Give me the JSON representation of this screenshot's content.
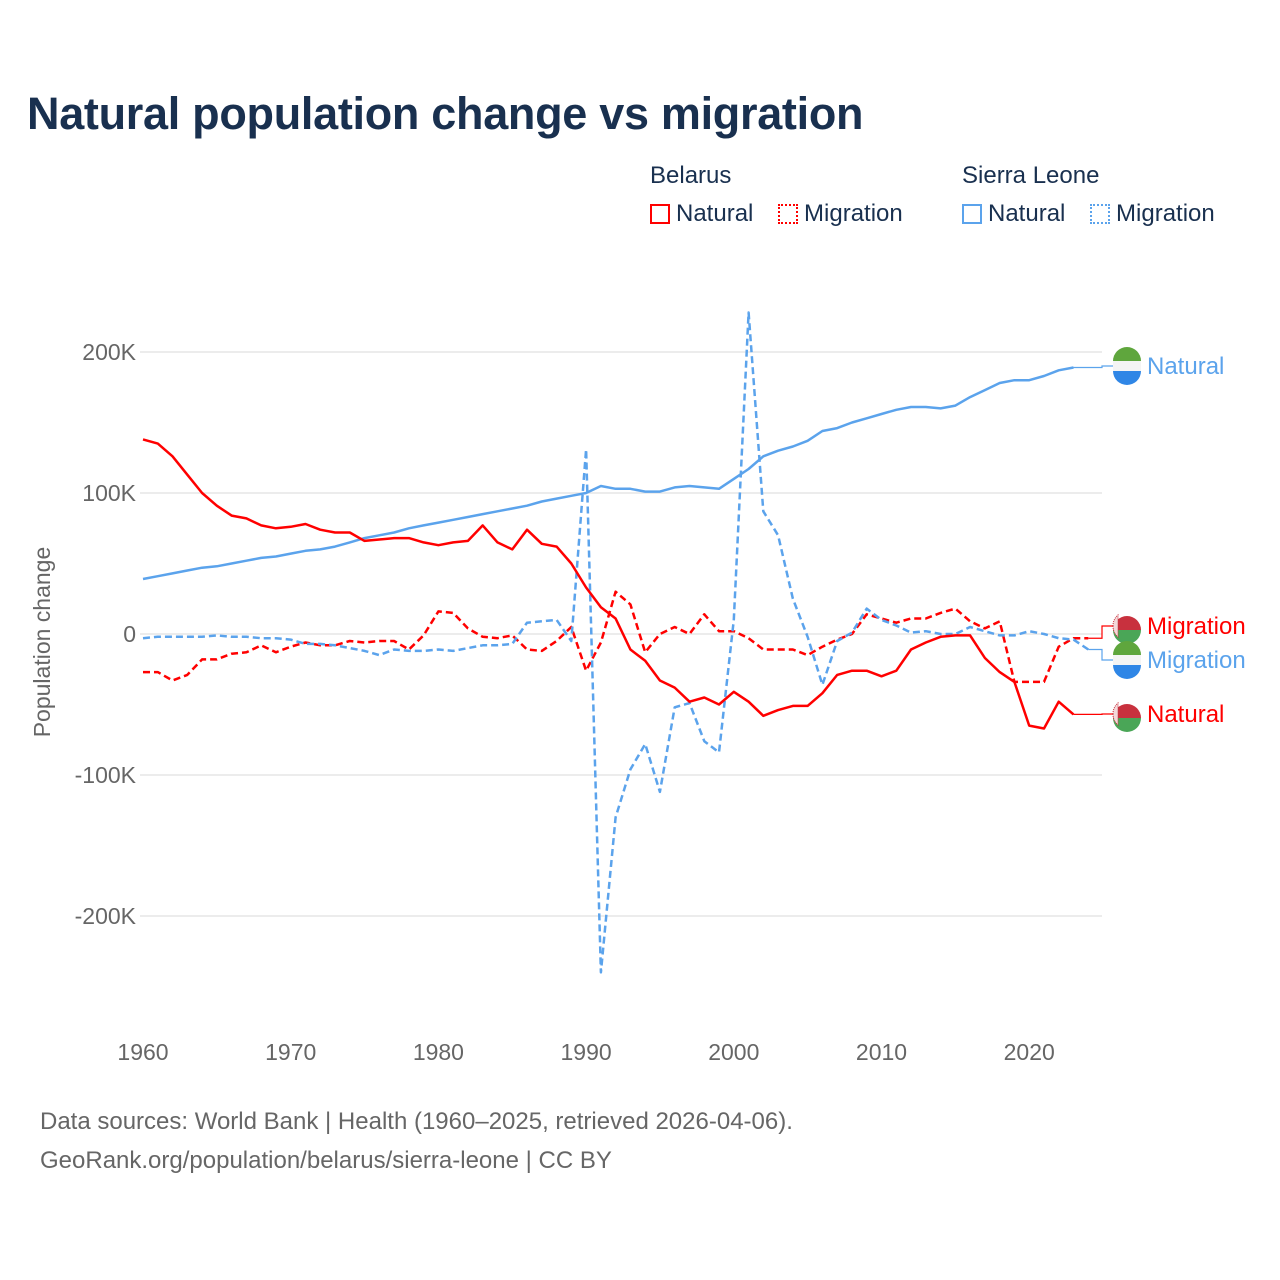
{
  "chart_data": {
    "type": "line",
    "title": "Natural population change vs migration",
    "xlabel": "",
    "ylabel": "Population change",
    "xlim": [
      1960,
      2025
    ],
    "ylim": [
      -270000,
      240000
    ],
    "x_ticks": [
      1960,
      1970,
      1980,
      1990,
      2000,
      2010,
      2020
    ],
    "y_ticks": [
      {
        "value": 200000,
        "label": "200K"
      },
      {
        "value": 100000,
        "label": "100K"
      },
      {
        "value": 0,
        "label": "0"
      },
      {
        "value": -100000,
        "label": "-100K"
      },
      {
        "value": -200000,
        "label": "-200K"
      }
    ],
    "grid": true,
    "legend": {
      "placement": "top-right",
      "groups": [
        {
          "country": "Belarus",
          "items": [
            "Natural",
            "Migration"
          ]
        },
        {
          "country": "Sierra Leone",
          "items": [
            "Natural",
            "Migration"
          ]
        }
      ]
    },
    "series": [
      {
        "id": "sl-natural",
        "country": "Sierra Leone",
        "name": "Natural",
        "color": "#5ba3ec",
        "dashed": false,
        "start_year": 1960,
        "values": [
          39,
          41,
          43,
          45,
          47,
          48,
          50,
          52,
          54,
          55,
          57,
          59,
          60,
          62,
          65,
          68,
          70,
          72,
          75,
          77,
          79,
          81,
          83,
          85,
          87,
          89,
          91,
          94,
          96,
          98,
          100,
          105,
          103,
          103,
          101,
          101,
          104,
          105,
          104,
          103,
          110,
          117,
          126,
          130,
          133,
          137,
          144,
          146,
          150,
          153,
          156,
          159,
          161,
          161,
          160,
          162,
          168,
          173,
          178,
          180,
          180,
          183,
          187,
          189
        ]
      },
      {
        "id": "by-migration",
        "country": "Belarus",
        "name": "Migration",
        "color": "#ff0000",
        "dashed": true,
        "start_year": 1960,
        "values": [
          -27,
          -27,
          -33,
          -29,
          -18,
          -18,
          -14,
          -13,
          -8,
          -13,
          -9,
          -6,
          -8,
          -8,
          -5,
          -6,
          -5,
          -5,
          -11,
          -1,
          16,
          15,
          4,
          -2,
          -3,
          -1,
          -11,
          -12,
          -5,
          5,
          -26,
          -6,
          30,
          21,
          -13,
          0,
          5,
          0,
          14,
          2,
          2,
          -3,
          -11,
          -11,
          -11,
          -15,
          -9,
          -4,
          0,
          14,
          11,
          8,
          11,
          11,
          15,
          18,
          9,
          4,
          9,
          -34,
          -34,
          -34,
          -9,
          -3,
          -3
        ]
      },
      {
        "id": "sl-migration",
        "country": "Sierra Leone",
        "name": "Migration",
        "color": "#5ba3ec",
        "dashed": true,
        "start_year": 1960,
        "values": [
          -3,
          -2,
          -2,
          -2,
          -2,
          -1,
          -2,
          -2,
          -3,
          -3,
          -4,
          -7,
          -7,
          -8,
          -10,
          -12,
          -15,
          -11,
          -12,
          -12,
          -11,
          -12,
          -10,
          -8,
          -8,
          -7,
          8,
          9,
          10,
          -5,
          131,
          -240,
          -130,
          -96,
          -78,
          -112,
          -52,
          -49,
          -76,
          -84,
          10,
          228,
          87,
          70,
          25,
          -2,
          -36,
          -5,
          1,
          18,
          10,
          6,
          1,
          2,
          0,
          0,
          5,
          2,
          -1,
          -1,
          2,
          0,
          -3,
          -4,
          -11
        ]
      },
      {
        "id": "by-natural",
        "country": "Belarus",
        "name": "Natural",
        "color": "#ff0000",
        "dashed": false,
        "start_year": 1960,
        "values": [
          138,
          135,
          126,
          113,
          100,
          91,
          84,
          82,
          77,
          75,
          76,
          78,
          74,
          72,
          72,
          66,
          67,
          68,
          68,
          65,
          63,
          65,
          66,
          77,
          65,
          60,
          74,
          64,
          62,
          50,
          33,
          19,
          11,
          -11,
          -19,
          -33,
          -38,
          -48,
          -45,
          -50,
          -41,
          -48,
          -58,
          -54,
          -51,
          -51,
          -42,
          -29,
          -26,
          -26,
          -30,
          -26,
          -11,
          -6,
          -2,
          -1,
          -1,
          -17,
          -27,
          -34,
          -65,
          -67,
          -48,
          -57
        ]
      }
    ],
    "value_unit": "thousands",
    "end_labels": [
      {
        "series": "sl-natural",
        "text": "Natural",
        "flag": "sierra-leone"
      },
      {
        "series": "by-migration",
        "text": "Migration",
        "flag": "belarus"
      },
      {
        "series": "sl-migration",
        "text": "Migration",
        "flag": "sierra-leone"
      },
      {
        "series": "by-natural",
        "text": "Natural",
        "flag": "belarus"
      }
    ]
  },
  "colors": {
    "belarus": "#ff0000",
    "sierra_leone": "#5ba3ec",
    "title": "#19304f",
    "axis_text": "#666666",
    "grid": "#e6e6e6"
  },
  "footer": {
    "line1": "Data sources: World Bank | Health (1960–2025, retrieved 2026-04-06).",
    "line2": "GeoRank.org/population/belarus/sierra-leone | CC BY"
  }
}
